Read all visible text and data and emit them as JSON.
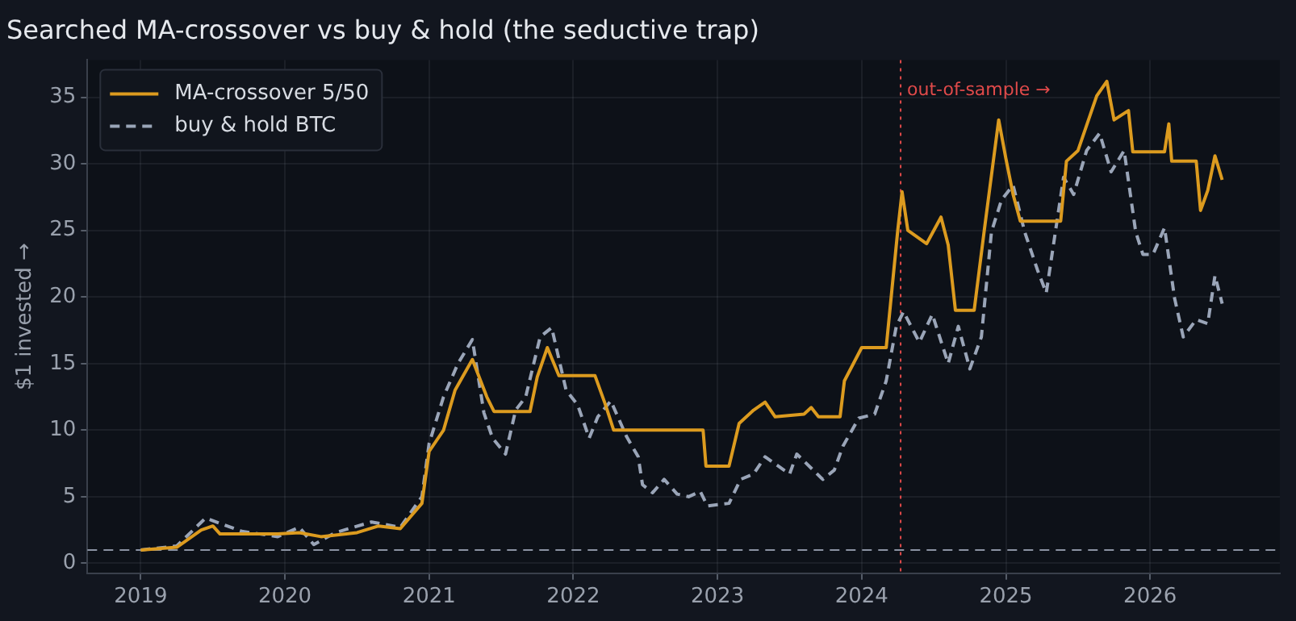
{
  "chart_data": {
    "type": "line",
    "title": "Searched MA-crossover vs buy & hold (the seductive trap)",
    "ylabel": "$1 invested →",
    "xlim": [
      2018.63,
      2026.9
    ],
    "xticks": [
      2019,
      2020,
      2021,
      2022,
      2023,
      2024,
      2025,
      2026
    ],
    "ylim": [
      -0.75,
      37.8
    ],
    "yticks": [
      0,
      5,
      10,
      15,
      20,
      25,
      30,
      35
    ],
    "grid": true,
    "legend": "top left",
    "marker": "none",
    "ref_lines": [
      {
        "axis": "y",
        "value": 1,
        "color": "#8b93a3",
        "line_style": "dashed"
      },
      {
        "axis": "x",
        "value": 2024.27,
        "label": "out-of-sample →",
        "color": "#e04a4a",
        "line_style": "dotted"
      }
    ],
    "series": [
      {
        "name": "MA-crossover 5/50",
        "color": "#dc9b1f",
        "line_style": "solid",
        "x": [
          2019.0,
          2019.25,
          2019.42,
          2019.5,
          2019.55,
          2019.95,
          2020.1,
          2020.25,
          2020.5,
          2020.65,
          2020.8,
          2020.95,
          2021.0,
          2021.1,
          2021.18,
          2021.3,
          2021.4,
          2021.45,
          2021.7,
          2021.75,
          2021.82,
          2021.9,
          2022.15,
          2022.22,
          2022.28,
          2022.9,
          2022.92,
          2023.08,
          2023.15,
          2023.25,
          2023.33,
          2023.4,
          2023.6,
          2023.65,
          2023.7,
          2023.85,
          2023.88,
          2024.0,
          2024.17,
          2024.2,
          2024.25,
          2024.28,
          2024.32,
          2024.45,
          2024.55,
          2024.6,
          2024.65,
          2024.78,
          2024.85,
          2024.95,
          2025.0,
          2025.05,
          2025.1,
          2025.38,
          2025.42,
          2025.5,
          2025.63,
          2025.7,
          2025.75,
          2025.85,
          2025.88,
          2026.1,
          2026.13,
          2026.15,
          2026.32,
          2026.35,
          2026.4,
          2026.45,
          2026.5
        ],
        "values": [
          1.0,
          1.2,
          2.5,
          2.8,
          2.2,
          2.2,
          2.3,
          2.0,
          2.3,
          2.8,
          2.6,
          4.5,
          8.4,
          10,
          13,
          15.3,
          12.5,
          11.4,
          11.4,
          14,
          16.2,
          14.1,
          14.1,
          12,
          10.0,
          10.0,
          7.3,
          7.3,
          10.5,
          11.5,
          12.1,
          11.0,
          11.2,
          11.7,
          11.0,
          11.0,
          13.7,
          16.2,
          16.2,
          19.5,
          25,
          27.9,
          25,
          24,
          26,
          23.9,
          19.0,
          19.0,
          25,
          33.3,
          30.4,
          27.7,
          25.7,
          25.7,
          30.2,
          31,
          35.1,
          36.2,
          33.3,
          34,
          30.9,
          30.9,
          33,
          30.2,
          30.2,
          26.5,
          28,
          30.6,
          28.8
        ]
      },
      {
        "name": "buy & hold BTC",
        "color": "#9aa5b8",
        "line_style": "dashed",
        "x": [
          2019.0,
          2019.25,
          2019.45,
          2019.55,
          2019.7,
          2019.95,
          2020.1,
          2020.2,
          2020.35,
          2020.6,
          2020.8,
          2020.95,
          2021.0,
          2021.1,
          2021.2,
          2021.3,
          2021.38,
          2021.44,
          2021.53,
          2021.6,
          2021.67,
          2021.77,
          2021.85,
          2021.95,
          2022.03,
          2022.11,
          2022.17,
          2022.26,
          2022.37,
          2022.45,
          2022.48,
          2022.55,
          2022.63,
          2022.72,
          2022.8,
          2022.88,
          2022.93,
          2023.0,
          2023.08,
          2023.16,
          2023.25,
          2023.33,
          2023.5,
          2023.55,
          2023.73,
          2023.81,
          2023.87,
          2023.98,
          2024.09,
          2024.17,
          2024.24,
          2024.29,
          2024.4,
          2024.49,
          2024.6,
          2024.67,
          2024.75,
          2024.83,
          2024.9,
          2024.97,
          2025.05,
          2025.13,
          2025.22,
          2025.28,
          2025.4,
          2025.47,
          2025.56,
          2025.65,
          2025.73,
          2025.82,
          2025.9,
          2025.95,
          2026.02,
          2026.1,
          2026.17,
          2026.23,
          2026.32,
          2026.4,
          2026.45,
          2026.5
        ],
        "values": [
          1.0,
          1.3,
          3.4,
          3.0,
          2.4,
          2.0,
          2.7,
          1.4,
          2.3,
          3.1,
          2.7,
          5,
          9,
          12.5,
          15,
          16.8,
          11.3,
          9.4,
          8.2,
          11.5,
          12.5,
          17,
          17.7,
          13,
          11.9,
          9.4,
          11,
          12.2,
          9.5,
          8,
          5.9,
          5.3,
          6.3,
          5.2,
          5.0,
          5.4,
          4.3,
          4.4,
          4.5,
          6.3,
          6.7,
          8.0,
          6.7,
          8.2,
          6.3,
          7.0,
          8.8,
          10.9,
          11.2,
          13.7,
          17.8,
          18.9,
          16.6,
          18.7,
          15.0,
          17.8,
          14.6,
          17,
          24.9,
          27.3,
          28.4,
          24.9,
          22,
          20.3,
          29,
          27.7,
          31,
          32.3,
          29.4,
          31,
          24.9,
          23.2,
          23.2,
          25.2,
          19.9,
          17,
          18.3,
          18,
          21.6,
          19.5
        ]
      }
    ]
  }
}
